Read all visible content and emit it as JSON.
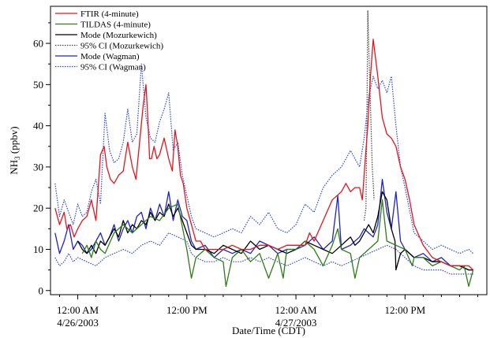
{
  "chart_data": {
    "type": "line",
    "title": "",
    "xlabel": "Date/Time (CDT)",
    "ylabel": "NH3 (ppbv)",
    "ylabel_main": "NH",
    "ylabel_sub": "3",
    "ylabel_unit": " (ppbv)",
    "x_unit": "hours after 12:00 AM 4/26/2003",
    "xlim": [
      -3,
      45
    ],
    "ylim": [
      -1,
      69
    ],
    "yticks": [
      0,
      10,
      20,
      30,
      40,
      50,
      60
    ],
    "xticks": [
      {
        "x": 0,
        "line1": "12:00 AM",
        "line2": "4/26/2003"
      },
      {
        "x": 12,
        "line1": "12:00 PM",
        "line2": ""
      },
      {
        "x": 24,
        "line1": "12:00 AM",
        "line2": "4/27/2003"
      },
      {
        "x": 36,
        "line1": "12:00 PM",
        "line2": ""
      }
    ],
    "legend_position": "top-left",
    "series": [
      {
        "name": "FTIR (4-minute)",
        "color": "#e8141b",
        "dash": "solid",
        "x": [
          -2.5,
          -2.0,
          -1.5,
          -1.2,
          -0.8,
          -0.4,
          0.0,
          0.5,
          1.0,
          1.5,
          2.0,
          2.5,
          2.9,
          3.2,
          3.6,
          4.0,
          4.5,
          5.0,
          5.5,
          6.0,
          6.4,
          6.8,
          7.2,
          7.5,
          7.7,
          7.9,
          8.1,
          8.4,
          8.7,
          9.0,
          9.5,
          10.0,
          10.4,
          10.7,
          11.0,
          11.3,
          11.6,
          12.0,
          12.5,
          13.0,
          13.5,
          14.0,
          15.0,
          16.0,
          17.0,
          18.0,
          19.0,
          20.0,
          21.0,
          22.0,
          23.0,
          24.0,
          25.0,
          25.5,
          26.0,
          27.0,
          28.0,
          29.0,
          29.5,
          30.0,
          30.5,
          31.0,
          31.3,
          31.6,
          31.9,
          32.2,
          32.5,
          33.0,
          33.5,
          34.0,
          34.5,
          35.0,
          35.5,
          36.0,
          36.5,
          37.0,
          38.0,
          39.0,
          40.0,
          41.0,
          42.0,
          43.0,
          43.5
        ],
        "y": [
          20,
          16,
          19,
          15,
          16,
          13,
          15,
          17,
          18,
          22,
          17,
          33,
          35,
          30,
          27,
          26,
          28,
          29,
          36,
          30,
          27,
          36,
          45,
          50,
          42,
          32,
          32,
          35,
          32,
          33,
          37,
          32,
          29,
          39,
          35,
          28,
          26,
          20,
          16,
          12,
          12,
          10,
          10,
          10,
          11,
          10,
          10,
          11,
          11,
          10,
          11,
          11,
          11,
          14,
          12,
          17,
          22,
          24,
          26,
          24,
          25,
          25,
          22,
          31,
          40,
          52,
          61,
          52,
          42,
          38,
          37,
          35,
          30,
          27,
          22,
          16,
          11,
          8,
          7,
          6,
          6,
          6,
          5
        ]
      },
      {
        "name": "TILDAS (4-minute)",
        "color": "#2e7d14",
        "dash": "solid",
        "x": [
          0.5,
          1.0,
          1.5,
          2.0,
          2.5,
          3.0,
          4.0,
          5.0,
          6.0,
          7.0,
          8.0,
          9.0,
          10.0,
          11.0,
          12.0,
          12.5,
          13.0,
          14.0,
          15.0,
          16.0,
          16.3,
          17.0,
          18.0,
          19.0,
          20.0,
          21.0,
          22.0,
          22.6,
          23.0,
          24.0,
          25.0,
          26.0,
          27.0,
          28.0,
          28.6,
          29.0,
          30.0,
          30.5,
          31.0,
          32.0,
          33.0,
          33.5,
          34.0,
          35.0,
          36.0,
          36.8,
          37.0,
          38.0,
          39.0,
          40.0,
          41.0,
          42.0,
          42.5,
          43.0,
          43.5
        ],
        "y": [
          9,
          11,
          8,
          12,
          10,
          9,
          14,
          16,
          14,
          16,
          18,
          17,
          20,
          21,
          10,
          3,
          8,
          10,
          8,
          7,
          1,
          8,
          10,
          7,
          9,
          3,
          9,
          3,
          10,
          10,
          12,
          10,
          6,
          11,
          15,
          10,
          9,
          3,
          8,
          10,
          12,
          22,
          12,
          11,
          10,
          6,
          8,
          8,
          6,
          7,
          6,
          5,
          6,
          1,
          5
        ]
      },
      {
        "name": "Mode (Mozurkewich)",
        "color": "#000000",
        "dash": "solid",
        "x": [
          0.0,
          0.5,
          1.0,
          1.5,
          2.0,
          2.5,
          3.0,
          4.0,
          4.5,
          5.0,
          5.5,
          6.0,
          6.5,
          7.0,
          7.5,
          8.0,
          8.5,
          9.0,
          9.5,
          10.0,
          10.5,
          11.0,
          11.5,
          12.0,
          12.5,
          13.0,
          14.0,
          15.0,
          16.0,
          17.0,
          18.0,
          19.0,
          20.0,
          21.0,
          22.0,
          23.0,
          24.0,
          25.0,
          26.0,
          27.0,
          28.0,
          29.0,
          29.5,
          30.0,
          30.5,
          31.0,
          31.5,
          32.0,
          32.5,
          33.0,
          33.5,
          34.0,
          34.5,
          34.9,
          35.0,
          35.5,
          36.0,
          37.0,
          38.0,
          39.0,
          40.0,
          41.0,
          42.0,
          43.0,
          43.5
        ],
        "y": [
          12,
          10,
          9,
          11,
          9,
          12,
          11,
          15,
          13,
          17,
          14,
          16,
          15,
          17,
          16,
          19,
          17,
          19,
          18,
          21,
          18,
          20,
          17,
          14,
          11,
          10,
          10,
          9,
          11,
          10,
          9,
          12,
          10,
          11,
          10,
          9,
          10,
          12,
          11,
          10,
          9,
          11,
          12,
          13,
          11,
          12,
          14,
          16,
          14,
          18,
          24,
          22,
          15,
          12,
          5,
          9,
          10,
          8,
          8,
          7,
          7,
          6,
          6,
          5,
          5
        ]
      },
      {
        "name": "95% CI (Mozurkewich)",
        "color": "#444444",
        "dash": "dot",
        "x": [
          31.5,
          31.7,
          31.8,
          31.9,
          32.0,
          32.2,
          32.4,
          32.6
        ],
        "y": [
          17,
          20,
          40,
          68,
          60,
          45,
          30,
          22
        ]
      },
      {
        "name": "Mode (Wagman)",
        "color": "#1d23c8",
        "dash": "solid",
        "x": [
          -2.5,
          -2.0,
          -1.5,
          -1.0,
          -0.5,
          0.0,
          0.5,
          1.0,
          1.5,
          2.0,
          2.5,
          3.0,
          3.5,
          4.0,
          4.5,
          5.0,
          5.5,
          6.0,
          6.5,
          7.0,
          7.5,
          8.0,
          8.5,
          9.0,
          9.5,
          10.0,
          10.5,
          11.0,
          11.5,
          12.0,
          12.5,
          13.0,
          14.0,
          15.0,
          16.0,
          17.0,
          18.0,
          19.0,
          20.0,
          21.0,
          22.0,
          23.0,
          24.0,
          25.0,
          26.0,
          27.0,
          28.0,
          28.6,
          29.0,
          30.0,
          30.5,
          31.0,
          31.5,
          32.0,
          32.5,
          33.0,
          33.5,
          34.0,
          34.5,
          35.0,
          35.5,
          36.0,
          37.0,
          38.0,
          39.0,
          40.0,
          41.0,
          42.0,
          43.0,
          43.5
        ],
        "y": [
          14,
          9,
          12,
          16,
          10,
          12,
          11,
          9,
          10,
          12,
          14,
          11,
          13,
          16,
          12,
          15,
          17,
          14,
          18,
          19,
          15,
          20,
          17,
          21,
          18,
          24,
          17,
          22,
          18,
          17,
          12,
          10,
          11,
          8,
          10,
          9,
          10,
          9,
          12,
          11,
          9,
          10,
          10,
          11,
          13,
          10,
          12,
          23,
          10,
          11,
          12,
          13,
          15,
          14,
          13,
          16,
          27,
          19,
          15,
          24,
          12,
          10,
          8,
          9,
          7,
          8,
          6,
          6,
          5,
          5
        ]
      },
      {
        "name": "95% CI (Wagman)",
        "color": "#2a47d8",
        "dash": "dot",
        "x": [
          -2.5,
          -2.0,
          -1.5,
          -1.0,
          -0.5,
          0.0,
          0.5,
          1.0,
          1.5,
          2.0,
          2.5,
          3.0,
          3.5,
          4.0,
          4.5,
          5.0,
          5.5,
          6.0,
          6.5,
          7.0,
          7.5,
          8.0,
          8.5,
          9.0,
          9.5,
          10.0,
          10.5,
          11.0,
          11.5,
          12.0,
          12.5,
          13.0,
          14.0,
          15.0,
          16.0,
          17.0,
          18.0,
          19.0,
          20.0,
          21.0,
          22.0,
          23.0,
          24.0,
          25.0,
          26.0,
          27.0,
          28.0,
          29.0,
          30.0,
          30.5,
          31.0,
          31.5,
          32.0,
          32.5,
          33.0,
          33.5,
          34.0,
          34.5,
          35.0,
          35.5,
          36.0,
          37.0,
          38.0,
          39.0,
          40.0,
          41.0,
          42.0,
          43.0,
          43.5
        ],
        "y": [
          26,
          18,
          22,
          19,
          16,
          21,
          18,
          19,
          24,
          27,
          21,
          43,
          34,
          31,
          32,
          36,
          44,
          36,
          38,
          55,
          42,
          37,
          36,
          41,
          44,
          48,
          34,
          36,
          28,
          23,
          18,
          15,
          14,
          13,
          14,
          15,
          14,
          18,
          16,
          19,
          15,
          14,
          16,
          21,
          19,
          25,
          28,
          30,
          34,
          32,
          30,
          37,
          47,
          52,
          49,
          51,
          48,
          52,
          40,
          30,
          25,
          14,
          12,
          10,
          11,
          10,
          9,
          10,
          9
        ]
      },
      {
        "name": "",
        "color": "#2a47d8",
        "dash": "dot",
        "x": [
          -2.5,
          -2.0,
          -1.5,
          -1.0,
          -0.5,
          0.0,
          1.0,
          2.0,
          3.0,
          4.0,
          5.0,
          6.0,
          7.0,
          8.0,
          9.0,
          10.0,
          11.0,
          12.0,
          12.5,
          13.0,
          14.0,
          15.0,
          16.0,
          17.0,
          18.0,
          19.0,
          20.0,
          21.0,
          22.0,
          23.0,
          24.0,
          25.0,
          26.0,
          27.0,
          28.0,
          29.0,
          30.0,
          31.0,
          32.0,
          33.0,
          34.0,
          35.0,
          36.0,
          37.0,
          38.0,
          39.0,
          40.0,
          41.0,
          42.0,
          43.0,
          43.5
        ],
        "y": [
          8,
          6,
          7,
          9,
          7,
          8,
          7,
          6,
          8,
          9,
          10,
          9,
          11,
          12,
          11,
          14,
          13,
          12,
          9,
          8,
          7,
          7,
          8,
          7,
          7,
          8,
          7,
          8,
          7,
          6,
          7,
          8,
          7,
          6,
          7,
          6,
          7,
          8,
          9,
          10,
          11,
          10,
          8,
          6,
          5,
          5,
          5,
          4,
          4,
          4,
          4
        ]
      }
    ]
  }
}
